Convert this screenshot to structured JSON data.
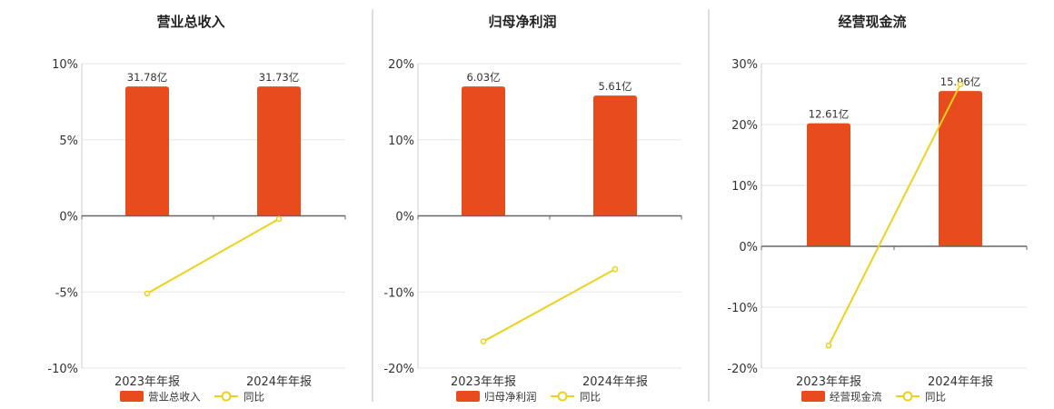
{
  "colors": {
    "bar": "#E84C1C",
    "line": "#EDD11B",
    "grid": "#E6E6E6",
    "axis": "#666666",
    "divider": "#BBBBBB",
    "text": "#333333"
  },
  "chart_data": [
    {
      "type": "bar",
      "title": "营业总收入",
      "categories": [
        "2023年年报",
        "2024年年报"
      ],
      "value_labels": [
        "31.78亿",
        "31.73亿"
      ],
      "series": [
        {
          "name": "营业总收入",
          "type": "bar",
          "values": [
            8.5,
            8.5
          ]
        },
        {
          "name": "同比",
          "type": "line",
          "values": [
            -5.1,
            -0.2
          ]
        }
      ],
      "y_ticks": [
        "10%",
        "5%",
        "0%",
        "-5%",
        "-10%"
      ],
      "ylim": [
        -10,
        10
      ],
      "grid": true,
      "legend": "bottom"
    },
    {
      "type": "bar",
      "title": "归母净利润",
      "categories": [
        "2023年年报",
        "2024年年报"
      ],
      "value_labels": [
        "6.03亿",
        "5.61亿"
      ],
      "series": [
        {
          "name": "归母净利润",
          "type": "bar",
          "values": [
            17.0,
            15.8
          ]
        },
        {
          "name": "同比",
          "type": "line",
          "values": [
            -16.5,
            -7.0
          ]
        }
      ],
      "y_ticks": [
        "20%",
        "10%",
        "0%",
        "-10%",
        "-20%"
      ],
      "ylim": [
        -20,
        20
      ],
      "grid": true,
      "legend": "bottom"
    },
    {
      "type": "bar",
      "title": "经营现金流",
      "categories": [
        "2023年年报",
        "2024年年报"
      ],
      "value_labels": [
        "12.61亿",
        "15.96亿"
      ],
      "series": [
        {
          "name": "经营现金流",
          "type": "bar",
          "values": [
            20.2,
            25.5
          ]
        },
        {
          "name": "同比",
          "type": "line",
          "values": [
            -16.3,
            26.6
          ]
        }
      ],
      "y_ticks": [
        "30%",
        "20%",
        "10%",
        "0%",
        "-10%",
        "-20%"
      ],
      "ylim": [
        -20,
        30
      ],
      "grid": true,
      "legend": "bottom"
    }
  ]
}
